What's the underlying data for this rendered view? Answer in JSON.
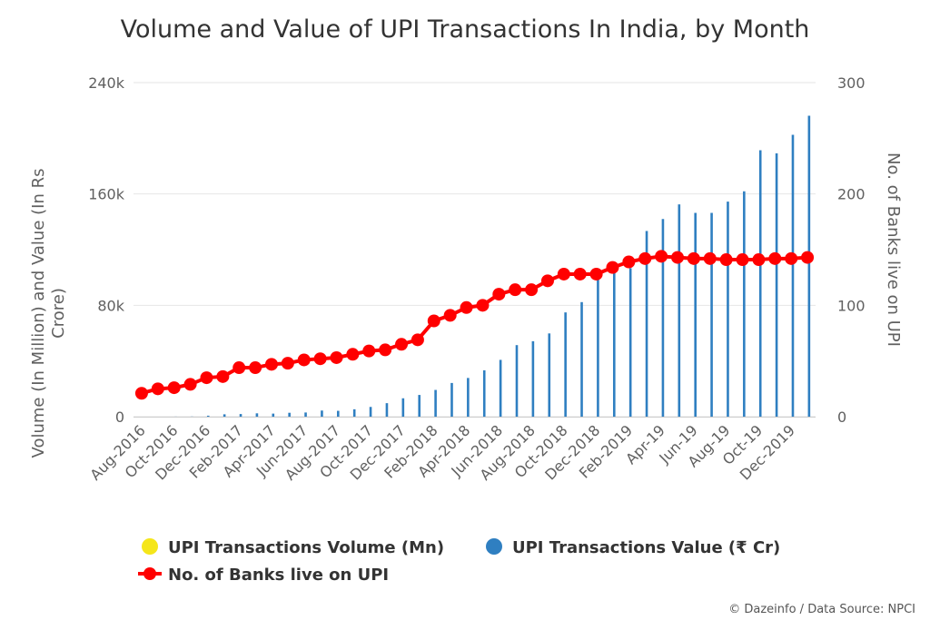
{
  "chart_data": {
    "type": "bar",
    "title": "Volume and Value of UPI Transactions In India, by Month",
    "ylabel_left": "Volume (In Million) and Value (In Rs Crore)",
    "ylabel_right": "No. of Banks live on UPI",
    "ylim_left": [
      0,
      240000
    ],
    "ylim_right": [
      0,
      300
    ],
    "yticks_left": [
      "0",
      "80k",
      "160k",
      "240k"
    ],
    "yticks_right": [
      "0",
      "100",
      "200",
      "300"
    ],
    "grid": true,
    "legend_position": "bottom",
    "categories": [
      "Aug-2016",
      "Sep-2016",
      "Oct-2016",
      "Nov-2016",
      "Dec-2016",
      "Jan-2017",
      "Feb-2017",
      "Mar-2017",
      "Apr-2017",
      "May-2017",
      "Jun-2017",
      "Jul-2017",
      "Aug-2017",
      "Sep-2017",
      "Oct-2017",
      "Nov-2017",
      "Dec-2017",
      "Jan-2018",
      "Feb-2018",
      "Mar-2018",
      "Apr-2018",
      "May-2018",
      "Jun-2018",
      "Jul-2018",
      "Aug-2018",
      "Sep-2018",
      "Oct-2018",
      "Nov-2018",
      "Dec-2018",
      "Jan-2019",
      "Feb-2019",
      "Mar-2019",
      "Apr-19",
      "May-19",
      "Jun-19",
      "Jul-19",
      "Aug-19",
      "Sep-19",
      "Oct-19",
      "Nov-19",
      "Dec-2019",
      "Jan-2020"
    ],
    "x_tick_labels": [
      "Aug-2016",
      "Oct-2016",
      "Dec-2016",
      "Feb-2017",
      "Apr-2017",
      "Jun-2017",
      "Aug-2017",
      "Oct-2017",
      "Dec-2017",
      "Feb-2018",
      "Apr-2018",
      "Jun-2018",
      "Aug-2018",
      "Oct-2018",
      "Dec-2018",
      "Feb-2019",
      "Apr-19",
      "Jun-19",
      "Aug-19",
      "Oct-19",
      "Dec-2019"
    ],
    "series": [
      {
        "name": "UPI Transactions Volume (Mn)",
        "kind": "bar",
        "axis": "left",
        "color": "#f5e61a",
        "values": [
          0,
          0,
          1,
          0,
          1,
          1,
          0,
          1,
          1,
          1,
          1,
          1,
          1,
          1,
          1,
          1,
          1,
          1,
          1,
          1,
          1,
          1,
          1,
          1,
          1,
          1,
          1,
          1,
          1,
          1,
          1,
          1,
          1,
          1,
          1,
          1,
          1,
          1,
          1,
          1,
          1,
          1
        ]
      },
      {
        "name": "UPI Transactions Value (₹ Cr)",
        "kind": "bar",
        "axis": "left",
        "color": "#2f7fc1",
        "values": [
          0,
          0,
          50,
          100,
          700,
          1700,
          1900,
          2400,
          2200,
          2800,
          3000,
          4400,
          4200,
          5300,
          7000,
          9700,
          13200,
          15600,
          19200,
          24200,
          27800,
          33300,
          40800,
          51400,
          54200,
          59800,
          74900,
          82300,
          102600,
          109900,
          106700,
          133400,
          142000,
          152500,
          146400,
          146400,
          154500,
          161900,
          191400,
          189200,
          202500,
          216200
        ]
      },
      {
        "name": "No. of Banks live on UPI",
        "kind": "line",
        "axis": "right",
        "color": "#ff0000",
        "values": [
          21,
          25,
          26,
          29,
          35,
          36,
          44,
          44,
          47,
          48,
          51,
          52,
          53,
          56,
          59,
          60,
          65,
          69,
          86,
          91,
          98,
          100,
          110,
          114,
          114,
          122,
          128,
          128,
          128,
          134,
          139,
          142,
          144,
          143,
          142,
          142,
          141,
          141,
          141,
          142,
          142,
          143
        ]
      }
    ]
  },
  "credit": "© Dazeinfo / Data Source: NPCI"
}
